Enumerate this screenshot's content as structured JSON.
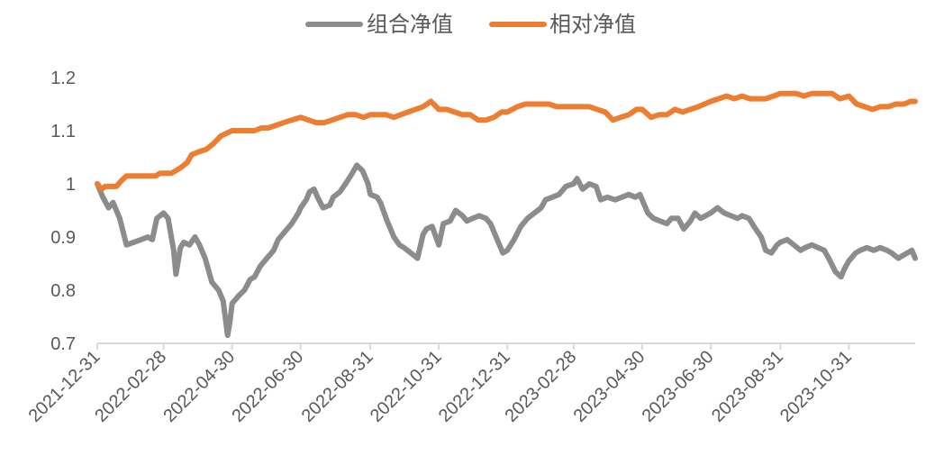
{
  "chart_data": {
    "type": "line",
    "title": "",
    "xlabel": "",
    "ylabel": "",
    "ylim": [
      0.7,
      1.2
    ],
    "yticks": [
      0.7,
      0.8,
      0.9,
      1,
      1.1,
      1.2
    ],
    "ytick_labels": [
      "0.7",
      "0.8",
      "0.9",
      "1",
      "1.1",
      "1.2"
    ],
    "xlim": [
      "2021-12-31",
      "2023-12-29"
    ],
    "xticks": [
      "2021-12-31",
      "2022-02-28",
      "2022-04-30",
      "2022-06-30",
      "2022-08-31",
      "2022-10-31",
      "2022-12-31",
      "2023-02-28",
      "2023-04-30",
      "2023-06-30",
      "2023-08-31",
      "2023-10-31"
    ],
    "grid": false,
    "legend_position": "top-center",
    "series": [
      {
        "name": "组合净值",
        "color": "#8c8c8c",
        "points": [
          [
            "2021-12-31",
            1.0
          ],
          [
            "2022-01-05",
            0.975
          ],
          [
            "2022-01-10",
            0.955
          ],
          [
            "2022-01-14",
            0.965
          ],
          [
            "2022-01-20",
            0.935
          ],
          [
            "2022-01-26",
            0.885
          ],
          [
            "2022-02-08",
            0.895
          ],
          [
            "2022-02-14",
            0.9
          ],
          [
            "2022-02-18",
            0.895
          ],
          [
            "2022-02-22",
            0.935
          ],
          [
            "2022-02-28",
            0.945
          ],
          [
            "2022-03-04",
            0.935
          ],
          [
            "2022-03-09",
            0.875
          ],
          [
            "2022-03-11",
            0.83
          ],
          [
            "2022-03-15",
            0.88
          ],
          [
            "2022-03-18",
            0.89
          ],
          [
            "2022-03-23",
            0.885
          ],
          [
            "2022-03-28",
            0.9
          ],
          [
            "2022-04-01",
            0.885
          ],
          [
            "2022-04-06",
            0.86
          ],
          [
            "2022-04-12",
            0.815
          ],
          [
            "2022-04-18",
            0.8
          ],
          [
            "2022-04-22",
            0.78
          ],
          [
            "2022-04-26",
            0.715
          ],
          [
            "2022-04-28",
            0.74
          ],
          [
            "2022-04-30",
            0.775
          ],
          [
            "2022-05-06",
            0.79
          ],
          [
            "2022-05-11",
            0.8
          ],
          [
            "2022-05-16",
            0.82
          ],
          [
            "2022-05-20",
            0.825
          ],
          [
            "2022-05-25",
            0.845
          ],
          [
            "2022-05-31",
            0.86
          ],
          [
            "2022-06-06",
            0.875
          ],
          [
            "2022-06-10",
            0.895
          ],
          [
            "2022-06-16",
            0.91
          ],
          [
            "2022-06-22",
            0.925
          ],
          [
            "2022-06-28",
            0.945
          ],
          [
            "2022-06-30",
            0.955
          ],
          [
            "2022-07-05",
            0.97
          ],
          [
            "2022-07-08",
            0.985
          ],
          [
            "2022-07-12",
            0.99
          ],
          [
            "2022-07-15",
            0.975
          ],
          [
            "2022-07-20",
            0.955
          ],
          [
            "2022-07-26",
            0.96
          ],
          [
            "2022-07-29",
            0.975
          ],
          [
            "2022-08-04",
            0.985
          ],
          [
            "2022-08-09",
            1.0
          ],
          [
            "2022-08-15",
            1.02
          ],
          [
            "2022-08-19",
            1.035
          ],
          [
            "2022-08-24",
            1.025
          ],
          [
            "2022-08-29",
            1.0
          ],
          [
            "2022-08-31",
            0.98
          ],
          [
            "2022-09-06",
            0.975
          ],
          [
            "2022-09-09",
            0.965
          ],
          [
            "2022-09-15",
            0.93
          ],
          [
            "2022-09-21",
            0.9
          ],
          [
            "2022-09-26",
            0.885
          ],
          [
            "2022-09-30",
            0.88
          ],
          [
            "2022-10-06",
            0.87
          ],
          [
            "2022-10-12",
            0.86
          ],
          [
            "2022-10-17",
            0.905
          ],
          [
            "2022-10-20",
            0.915
          ],
          [
            "2022-10-25",
            0.92
          ],
          [
            "2022-10-31",
            0.885
          ],
          [
            "2022-11-04",
            0.925
          ],
          [
            "2022-11-10",
            0.93
          ],
          [
            "2022-11-15",
            0.95
          ],
          [
            "2022-11-21",
            0.94
          ],
          [
            "2022-11-25",
            0.93
          ],
          [
            "2022-11-30",
            0.935
          ],
          [
            "2022-12-06",
            0.94
          ],
          [
            "2022-12-12",
            0.935
          ],
          [
            "2022-12-16",
            0.925
          ],
          [
            "2022-12-22",
            0.895
          ],
          [
            "2022-12-27",
            0.87
          ],
          [
            "2022-12-31",
            0.875
          ],
          [
            "2023-01-06",
            0.895
          ],
          [
            "2023-01-12",
            0.92
          ],
          [
            "2023-01-18",
            0.935
          ],
          [
            "2023-01-30",
            0.955
          ],
          [
            "2023-02-03",
            0.97
          ],
          [
            "2023-02-09",
            0.975
          ],
          [
            "2023-02-15",
            0.98
          ],
          [
            "2023-02-21",
            0.995
          ],
          [
            "2023-02-28",
            1.0
          ],
          [
            "2023-03-03",
            1.01
          ],
          [
            "2023-03-08",
            0.99
          ],
          [
            "2023-03-14",
            1.0
          ],
          [
            "2023-03-20",
            0.995
          ],
          [
            "2023-03-24",
            0.97
          ],
          [
            "2023-03-30",
            0.975
          ],
          [
            "2023-04-06",
            0.97
          ],
          [
            "2023-04-12",
            0.975
          ],
          [
            "2023-04-18",
            0.98
          ],
          [
            "2023-04-24",
            0.975
          ],
          [
            "2023-04-28",
            0.98
          ],
          [
            "2023-05-05",
            0.945
          ],
          [
            "2023-05-10",
            0.935
          ],
          [
            "2023-05-16",
            0.93
          ],
          [
            "2023-05-22",
            0.925
          ],
          [
            "2023-05-26",
            0.935
          ],
          [
            "2023-06-01",
            0.935
          ],
          [
            "2023-06-06",
            0.915
          ],
          [
            "2023-06-12",
            0.93
          ],
          [
            "2023-06-16",
            0.945
          ],
          [
            "2023-06-21",
            0.935
          ],
          [
            "2023-06-30",
            0.945
          ],
          [
            "2023-07-06",
            0.955
          ],
          [
            "2023-07-12",
            0.945
          ],
          [
            "2023-07-18",
            0.94
          ],
          [
            "2023-07-24",
            0.935
          ],
          [
            "2023-07-28",
            0.94
          ],
          [
            "2023-08-03",
            0.935
          ],
          [
            "2023-08-09",
            0.915
          ],
          [
            "2023-08-14",
            0.9
          ],
          [
            "2023-08-18",
            0.875
          ],
          [
            "2023-08-23",
            0.87
          ],
          [
            "2023-08-28",
            0.885
          ],
          [
            "2023-08-31",
            0.89
          ],
          [
            "2023-09-06",
            0.895
          ],
          [
            "2023-09-12",
            0.885
          ],
          [
            "2023-09-18",
            0.875
          ],
          [
            "2023-09-22",
            0.88
          ],
          [
            "2023-09-28",
            0.885
          ],
          [
            "2023-10-09",
            0.875
          ],
          [
            "2023-10-13",
            0.86
          ],
          [
            "2023-10-19",
            0.835
          ],
          [
            "2023-10-24",
            0.825
          ],
          [
            "2023-10-27",
            0.84
          ],
          [
            "2023-10-31",
            0.855
          ],
          [
            "2023-11-06",
            0.87
          ],
          [
            "2023-11-10",
            0.875
          ],
          [
            "2023-11-16",
            0.88
          ],
          [
            "2023-11-22",
            0.875
          ],
          [
            "2023-11-28",
            0.88
          ],
          [
            "2023-12-04",
            0.875
          ],
          [
            "2023-12-08",
            0.87
          ],
          [
            "2023-12-14",
            0.86
          ],
          [
            "2023-12-18",
            0.865
          ],
          [
            "2023-12-22",
            0.87
          ],
          [
            "2023-12-26",
            0.875
          ],
          [
            "2023-12-29",
            0.86
          ]
        ]
      },
      {
        "name": "相对净值",
        "color": "#ed7d31",
        "points": [
          [
            "2021-12-31",
            1.0
          ],
          [
            "2022-01-04",
            0.99
          ],
          [
            "2022-01-07",
            0.995
          ],
          [
            "2022-01-12",
            0.995
          ],
          [
            "2022-01-17",
            0.995
          ],
          [
            "2022-01-21",
            1.005
          ],
          [
            "2022-01-26",
            1.015
          ],
          [
            "2022-01-28",
            1.015
          ],
          [
            "2022-02-09",
            1.015
          ],
          [
            "2022-02-15",
            1.015
          ],
          [
            "2022-02-21",
            1.015
          ],
          [
            "2022-02-25",
            1.02
          ],
          [
            "2022-03-03",
            1.02
          ],
          [
            "2022-03-07",
            1.02
          ],
          [
            "2022-03-11",
            1.025
          ],
          [
            "2022-03-15",
            1.03
          ],
          [
            "2022-03-21",
            1.04
          ],
          [
            "2022-03-25",
            1.055
          ],
          [
            "2022-03-31",
            1.06
          ],
          [
            "2022-04-07",
            1.065
          ],
          [
            "2022-04-13",
            1.075
          ],
          [
            "2022-04-20",
            1.09
          ],
          [
            "2022-04-25",
            1.095
          ],
          [
            "2022-04-30",
            1.1
          ],
          [
            "2022-05-09",
            1.1
          ],
          [
            "2022-05-13",
            1.1
          ],
          [
            "2022-05-20",
            1.1
          ],
          [
            "2022-05-26",
            1.105
          ],
          [
            "2022-06-01",
            1.105
          ],
          [
            "2022-06-08",
            1.11
          ],
          [
            "2022-06-15",
            1.115
          ],
          [
            "2022-06-22",
            1.12
          ],
          [
            "2022-06-30",
            1.125
          ],
          [
            "2022-07-07",
            1.12
          ],
          [
            "2022-07-14",
            1.115
          ],
          [
            "2022-07-21",
            1.115
          ],
          [
            "2022-07-28",
            1.12
          ],
          [
            "2022-08-04",
            1.125
          ],
          [
            "2022-08-11",
            1.13
          ],
          [
            "2022-08-18",
            1.13
          ],
          [
            "2022-08-25",
            1.125
          ],
          [
            "2022-08-31",
            1.13
          ],
          [
            "2022-09-07",
            1.13
          ],
          [
            "2022-09-14",
            1.13
          ],
          [
            "2022-09-21",
            1.125
          ],
          [
            "2022-09-27",
            1.13
          ],
          [
            "2022-10-10",
            1.14
          ],
          [
            "2022-10-17",
            1.145
          ],
          [
            "2022-10-24",
            1.155
          ],
          [
            "2022-10-31",
            1.14
          ],
          [
            "2022-11-07",
            1.14
          ],
          [
            "2022-11-14",
            1.135
          ],
          [
            "2022-11-21",
            1.13
          ],
          [
            "2022-11-28",
            1.13
          ],
          [
            "2022-12-05",
            1.12
          ],
          [
            "2022-12-12",
            1.12
          ],
          [
            "2022-12-19",
            1.125
          ],
          [
            "2022-12-26",
            1.135
          ],
          [
            "2022-12-31",
            1.135
          ],
          [
            "2023-01-09",
            1.145
          ],
          [
            "2023-01-16",
            1.15
          ],
          [
            "2023-01-30",
            1.15
          ],
          [
            "2023-02-06",
            1.15
          ],
          [
            "2023-02-13",
            1.145
          ],
          [
            "2023-02-20",
            1.145
          ],
          [
            "2023-02-28",
            1.145
          ],
          [
            "2023-03-07",
            1.145
          ],
          [
            "2023-03-14",
            1.145
          ],
          [
            "2023-03-21",
            1.14
          ],
          [
            "2023-03-28",
            1.135
          ],
          [
            "2023-04-04",
            1.12
          ],
          [
            "2023-04-11",
            1.125
          ],
          [
            "2023-04-18",
            1.13
          ],
          [
            "2023-04-25",
            1.14
          ],
          [
            "2023-04-30",
            1.14
          ],
          [
            "2023-05-08",
            1.125
          ],
          [
            "2023-05-15",
            1.13
          ],
          [
            "2023-05-22",
            1.13
          ],
          [
            "2023-05-29",
            1.14
          ],
          [
            "2023-06-05",
            1.135
          ],
          [
            "2023-06-12",
            1.14
          ],
          [
            "2023-06-19",
            1.145
          ],
          [
            "2023-06-30",
            1.155
          ],
          [
            "2023-07-07",
            1.16
          ],
          [
            "2023-07-14",
            1.165
          ],
          [
            "2023-07-21",
            1.16
          ],
          [
            "2023-07-28",
            1.165
          ],
          [
            "2023-08-04",
            1.16
          ],
          [
            "2023-08-11",
            1.16
          ],
          [
            "2023-08-18",
            1.16
          ],
          [
            "2023-08-25",
            1.165
          ],
          [
            "2023-08-31",
            1.17
          ],
          [
            "2023-09-07",
            1.17
          ],
          [
            "2023-09-14",
            1.17
          ],
          [
            "2023-09-21",
            1.165
          ],
          [
            "2023-09-28",
            1.17
          ],
          [
            "2023-10-09",
            1.17
          ],
          [
            "2023-10-16",
            1.17
          ],
          [
            "2023-10-23",
            1.16
          ],
          [
            "2023-10-31",
            1.165
          ],
          [
            "2023-11-07",
            1.15
          ],
          [
            "2023-11-14",
            1.145
          ],
          [
            "2023-11-21",
            1.14
          ],
          [
            "2023-11-28",
            1.145
          ],
          [
            "2023-12-05",
            1.145
          ],
          [
            "2023-12-12",
            1.15
          ],
          [
            "2023-12-19",
            1.15
          ],
          [
            "2023-12-25",
            1.155
          ],
          [
            "2023-12-29",
            1.155
          ]
        ]
      }
    ]
  }
}
